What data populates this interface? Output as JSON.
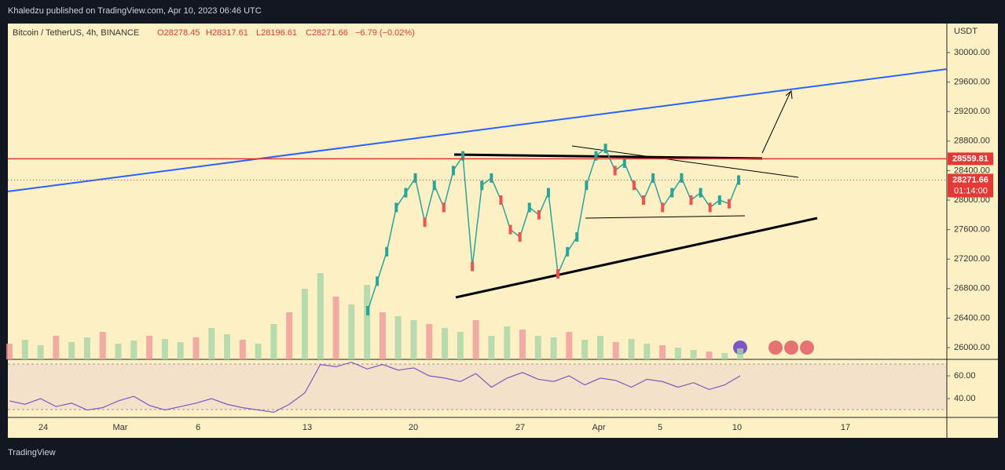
{
  "header": {
    "publisher": "Khaledzu published on TradingView.com, Apr 10, 2023 06:46 UTC"
  },
  "legend": {
    "symbol": "Bitcoin / TetherUS, 4h, BINANCE",
    "open": "O28278.45",
    "high": "H28317.61",
    "low": "L28196.61",
    "close": "C28271.66",
    "change": "−6.79 (−0.02%)"
  },
  "price_axis": {
    "unit": "USDT",
    "ticks": [
      {
        "value": 30000,
        "label": "30000.00"
      },
      {
        "value": 29600,
        "label": "29600.00"
      },
      {
        "value": 29200,
        "label": "29200.00"
      },
      {
        "value": 28800,
        "label": "28800.00"
      },
      {
        "value": 28400,
        "label": "28400.00"
      },
      {
        "value": 28000,
        "label": "28000.00"
      },
      {
        "value": 27600,
        "label": "27600.00"
      },
      {
        "value": 27200,
        "label": "27200.00"
      },
      {
        "value": 26800,
        "label": "26800.00"
      },
      {
        "value": 26400,
        "label": "26400.00"
      },
      {
        "value": 26000,
        "label": "26000.00"
      }
    ],
    "resistance": {
      "value": 28559.81,
      "label": "28559.81"
    },
    "last": {
      "value": 28271.66,
      "label": "28271.66"
    },
    "countdown": "01:14:00"
  },
  "price": {
    "values": [
      26500,
      26900,
      27300,
      27900,
      28100,
      28300,
      27700,
      28200,
      27900,
      28400,
      28600,
      27100,
      28200,
      28300,
      28000,
      27600,
      27500,
      27900,
      27800,
      28100,
      27000,
      27300,
      27500,
      28200,
      28600,
      28700,
      28400,
      28500,
      28200,
      28000,
      28300,
      27900,
      28100,
      28300,
      28000,
      28100,
      27900,
      28000,
      27950,
      28271.66
    ]
  },
  "volume": {
    "values": [
      20,
      25,
      18,
      30,
      22,
      28,
      35,
      20,
      24,
      30,
      26,
      22,
      28,
      40,
      32,
      25,
      20,
      45,
      60,
      90,
      110,
      80,
      70,
      95,
      60,
      55,
      50,
      45,
      40,
      35,
      50,
      30,
      42,
      38,
      30,
      28,
      35,
      25,
      30,
      22,
      26,
      20,
      18,
      15,
      12,
      10,
      8,
      14
    ]
  },
  "rsi": {
    "ticks": [
      {
        "value": 60,
        "label": "60.00"
      },
      {
        "value": 40,
        "label": "40.00"
      }
    ],
    "values": [
      38,
      35,
      40,
      33,
      36,
      30,
      32,
      38,
      42,
      34,
      30,
      33,
      36,
      40,
      35,
      32,
      30,
      28,
      35,
      45,
      70,
      68,
      72,
      66,
      70,
      65,
      67,
      60,
      58,
      55,
      62,
      50,
      58,
      63,
      57,
      55,
      60,
      52,
      58,
      56,
      50,
      57,
      55,
      50,
      54,
      48,
      52,
      60
    ]
  },
  "time_axis": {
    "labels": [
      "24",
      "Mar",
      "6",
      "13",
      "20",
      "27",
      "Apr",
      "5",
      "10",
      "17"
    ]
  },
  "footer": {
    "brand": "TradingView"
  }
}
